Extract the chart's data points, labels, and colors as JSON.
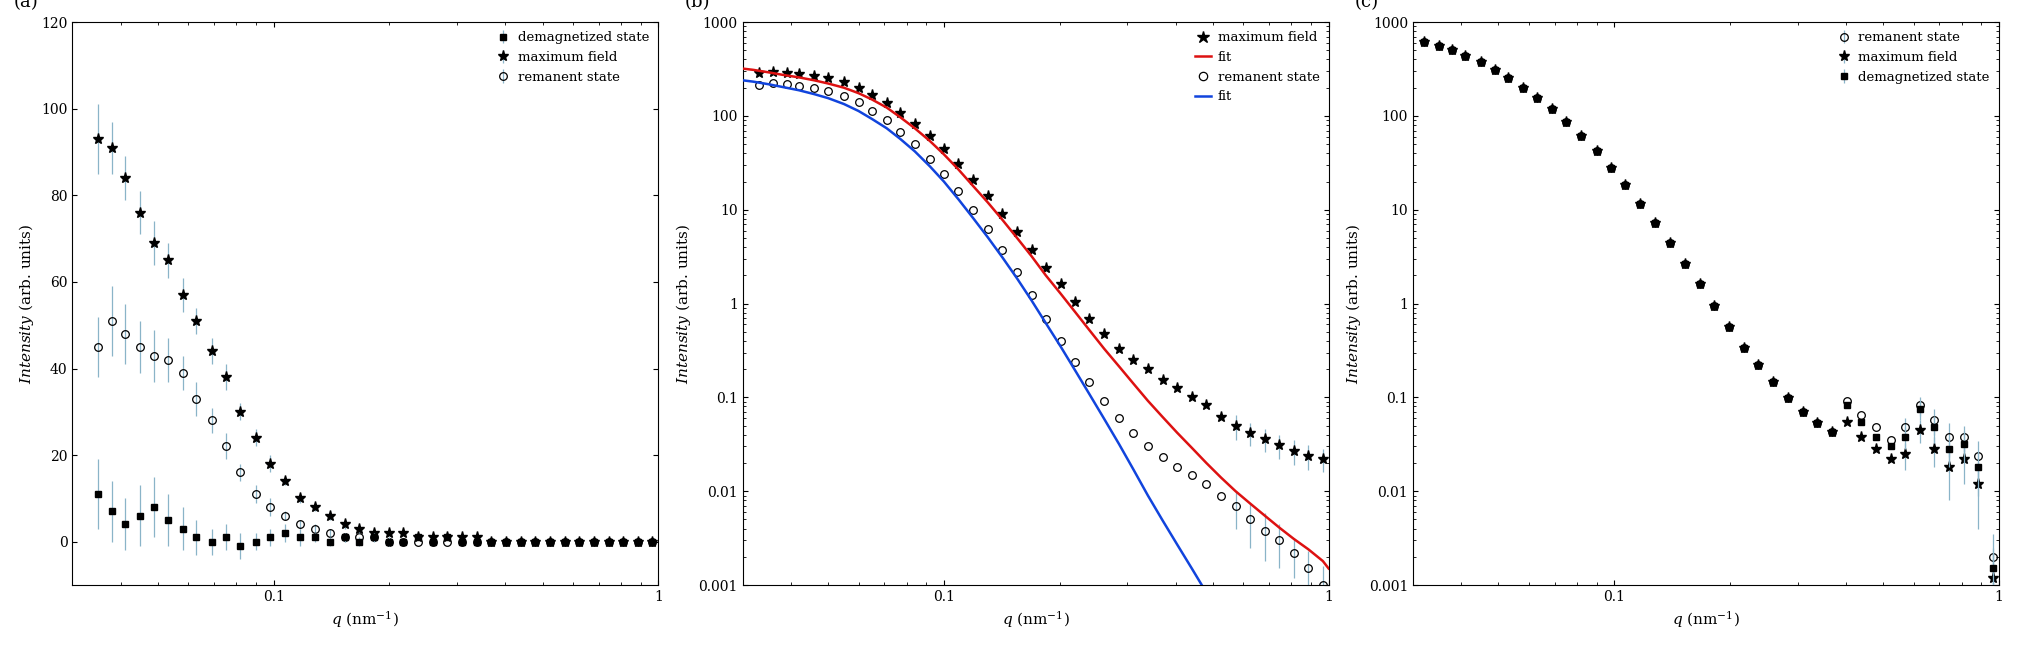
{
  "panel_a": {
    "xlim": [
      0.03,
      1.0
    ],
    "ylim": [
      -10,
      120
    ],
    "yticks": [
      0,
      20,
      40,
      60,
      80,
      100,
      120
    ],
    "demagnetized": {
      "q": [
        0.035,
        0.038,
        0.041,
        0.045,
        0.049,
        0.053,
        0.058,
        0.063,
        0.069,
        0.075,
        0.082,
        0.09,
        0.098,
        0.107,
        0.117,
        0.128,
        0.14,
        0.153,
        0.167,
        0.182,
        0.199,
        0.217,
        0.237,
        0.259,
        0.283,
        0.309,
        0.337,
        0.368,
        0.402,
        0.439,
        0.479,
        0.523,
        0.571,
        0.623,
        0.68,
        0.742,
        0.81,
        0.884,
        0.965
      ],
      "I": [
        11,
        7,
        4,
        6,
        8,
        5,
        3,
        1,
        0,
        1,
        -1,
        0,
        1,
        2,
        1,
        1,
        0,
        1,
        0,
        1,
        0,
        0,
        1,
        0,
        1,
        0,
        0,
        0,
        0,
        0,
        0,
        0,
        0,
        0,
        0,
        0,
        0,
        0,
        0
      ],
      "yerr": [
        8,
        7,
        6,
        7,
        7,
        6,
        5,
        4,
        3,
        3,
        3,
        2,
        2,
        2,
        2,
        1,
        1,
        1,
        1,
        1,
        1,
        0,
        0,
        0,
        0,
        0,
        0,
        0,
        0,
        0,
        0,
        0,
        0,
        0,
        0,
        0,
        0,
        0,
        0
      ]
    },
    "maximum_field": {
      "q": [
        0.035,
        0.038,
        0.041,
        0.045,
        0.049,
        0.053,
        0.058,
        0.063,
        0.069,
        0.075,
        0.082,
        0.09,
        0.098,
        0.107,
        0.117,
        0.128,
        0.14,
        0.153,
        0.167,
        0.182,
        0.199,
        0.217,
        0.237,
        0.259,
        0.283,
        0.309,
        0.337,
        0.368,
        0.402,
        0.439,
        0.479,
        0.523,
        0.571,
        0.623,
        0.68,
        0.742,
        0.81,
        0.884,
        0.965
      ],
      "I": [
        93,
        91,
        84,
        76,
        69,
        65,
        57,
        51,
        44,
        38,
        30,
        24,
        18,
        14,
        10,
        8,
        6,
        4,
        3,
        2,
        2,
        2,
        1,
        1,
        1,
        1,
        1,
        0,
        0,
        0,
        0,
        0,
        0,
        0,
        0,
        0,
        0,
        0,
        0
      ],
      "yerr": [
        8,
        6,
        5,
        5,
        5,
        4,
        4,
        3,
        3,
        3,
        2,
        2,
        2,
        1,
        1,
        1,
        1,
        1,
        1,
        0,
        0,
        0,
        0,
        0,
        0,
        0,
        0,
        0,
        0,
        0,
        0,
        0,
        0,
        0,
        0,
        0,
        0,
        0,
        0
      ]
    },
    "remanent": {
      "q": [
        0.035,
        0.038,
        0.041,
        0.045,
        0.049,
        0.053,
        0.058,
        0.063,
        0.069,
        0.075,
        0.082,
        0.09,
        0.098,
        0.107,
        0.117,
        0.128,
        0.14,
        0.153,
        0.167,
        0.182,
        0.199,
        0.217,
        0.237,
        0.259,
        0.283,
        0.309,
        0.337,
        0.368,
        0.402,
        0.439,
        0.479,
        0.523,
        0.571,
        0.623,
        0.68,
        0.742,
        0.81,
        0.884,
        0.965
      ],
      "I": [
        45,
        51,
        48,
        45,
        43,
        42,
        39,
        33,
        28,
        22,
        16,
        11,
        8,
        6,
        4,
        3,
        2,
        1,
        1,
        1,
        0,
        0,
        0,
        0,
        0,
        0,
        0,
        0,
        0,
        0,
        0,
        0,
        0,
        0,
        0,
        0,
        0,
        0,
        0
      ],
      "yerr": [
        7,
        8,
        7,
        6,
        6,
        5,
        4,
        4,
        3,
        3,
        2,
        2,
        2,
        1,
        1,
        1,
        1,
        1,
        0,
        0,
        0,
        0,
        0,
        0,
        0,
        0,
        0,
        0,
        0,
        0,
        0,
        0,
        0,
        0,
        0,
        0,
        0,
        0,
        0
      ]
    }
  },
  "panel_b": {
    "xlim": [
      0.03,
      1.0
    ],
    "ylim": [
      0.001,
      1000
    ],
    "maximum_field": {
      "q": [
        0.033,
        0.036,
        0.039,
        0.042,
        0.046,
        0.05,
        0.055,
        0.06,
        0.065,
        0.071,
        0.077,
        0.084,
        0.092,
        0.1,
        0.109,
        0.119,
        0.13,
        0.142,
        0.155,
        0.169,
        0.184,
        0.201,
        0.219,
        0.239,
        0.261,
        0.285,
        0.311,
        0.339,
        0.37,
        0.404,
        0.441,
        0.481,
        0.525,
        0.573,
        0.625,
        0.682,
        0.744,
        0.812,
        0.886,
        0.966
      ],
      "I": [
        290,
        295,
        288,
        280,
        268,
        252,
        228,
        198,
        168,
        138,
        108,
        82,
        61,
        44,
        31,
        21,
        14,
        9.0,
        5.8,
        3.7,
        2.4,
        1.6,
        1.05,
        0.68,
        0.47,
        0.33,
        0.25,
        0.2,
        0.155,
        0.125,
        0.102,
        0.082,
        0.062,
        0.05,
        0.042,
        0.036,
        0.031,
        0.027,
        0.024,
        0.022
      ],
      "yerr": [
        0,
        0,
        0,
        0,
        0,
        0,
        0,
        0,
        0,
        0,
        0,
        0,
        0,
        0,
        0,
        0,
        0,
        0,
        0,
        0,
        0,
        0,
        0,
        0,
        0,
        0,
        0,
        0,
        0,
        0,
        0,
        0,
        0,
        0.015,
        0.012,
        0.01,
        0.009,
        0.008,
        0.007,
        0.006
      ]
    },
    "remanent": {
      "q": [
        0.033,
        0.036,
        0.039,
        0.042,
        0.046,
        0.05,
        0.055,
        0.06,
        0.065,
        0.071,
        0.077,
        0.084,
        0.092,
        0.1,
        0.109,
        0.119,
        0.13,
        0.142,
        0.155,
        0.169,
        0.184,
        0.201,
        0.219,
        0.239,
        0.261,
        0.285,
        0.311,
        0.339,
        0.37,
        0.404,
        0.441,
        0.481,
        0.525,
        0.573,
        0.625,
        0.682,
        0.744,
        0.812,
        0.886,
        0.966
      ],
      "I": [
        215,
        222,
        218,
        208,
        198,
        185,
        165,
        140,
        114,
        90,
        68,
        50,
        35,
        24,
        16,
        10,
        6.2,
        3.7,
        2.15,
        1.22,
        0.68,
        0.4,
        0.24,
        0.145,
        0.092,
        0.06,
        0.042,
        0.03,
        0.023,
        0.018,
        0.015,
        0.012,
        0.009,
        0.007,
        0.005,
        0.0038,
        0.003,
        0.0022,
        0.0015,
        0.001
      ],
      "yerr": [
        0,
        0,
        0,
        0,
        0,
        0,
        0,
        0,
        0,
        0,
        0,
        0,
        0,
        0,
        0,
        0,
        0,
        0,
        0,
        0,
        0,
        0,
        0,
        0,
        0,
        0,
        0,
        0,
        0,
        0,
        0,
        0,
        0,
        0.003,
        0.0025,
        0.002,
        0.0015,
        0.001,
        0.0008,
        0.0006
      ]
    },
    "fit_max_q": [
      0.03,
      0.032,
      0.035,
      0.038,
      0.042,
      0.046,
      0.05,
      0.055,
      0.06,
      0.065,
      0.071,
      0.077,
      0.084,
      0.092,
      0.1,
      0.109,
      0.119,
      0.13,
      0.142,
      0.155,
      0.169,
      0.184,
      0.201,
      0.219,
      0.239,
      0.261,
      0.285,
      0.311,
      0.339,
      0.37,
      0.404,
      0.441,
      0.481,
      0.525,
      0.573,
      0.625,
      0.682,
      0.744,
      0.812,
      0.886,
      0.966,
      1.0
    ],
    "fit_max_I": [
      320,
      310,
      292,
      275,
      258,
      240,
      222,
      200,
      175,
      150,
      123,
      97,
      74,
      54,
      39,
      27,
      18,
      12,
      7.8,
      5.0,
      3.2,
      2.0,
      1.28,
      0.82,
      0.52,
      0.33,
      0.215,
      0.14,
      0.092,
      0.062,
      0.042,
      0.029,
      0.02,
      0.014,
      0.01,
      0.0074,
      0.0055,
      0.0041,
      0.0031,
      0.0024,
      0.0018,
      0.0015
    ],
    "fit_rem_q": [
      0.03,
      0.032,
      0.035,
      0.038,
      0.042,
      0.046,
      0.05,
      0.055,
      0.06,
      0.065,
      0.071,
      0.077,
      0.084,
      0.092,
      0.1,
      0.109,
      0.119,
      0.13,
      0.142,
      0.155,
      0.169,
      0.184,
      0.201,
      0.219,
      0.239,
      0.261,
      0.285,
      0.311,
      0.339,
      0.37,
      0.404,
      0.441,
      0.481,
      0.525,
      0.573,
      0.625,
      0.682,
      0.744,
      0.812,
      0.886,
      0.966,
      1.0
    ],
    "fit_rem_I": [
      240,
      232,
      218,
      204,
      188,
      171,
      155,
      134,
      113,
      93,
      74,
      57,
      42,
      29,
      20,
      13,
      8.2,
      5.1,
      3.1,
      1.85,
      1.08,
      0.62,
      0.35,
      0.196,
      0.108,
      0.059,
      0.032,
      0.017,
      0.009,
      0.0049,
      0.0027,
      0.0015,
      0.00083,
      0.00046,
      0.000255,
      0.000143,
      8e-05,
      4.5e-05,
      2.6e-05,
      1.5e-05,
      8.5e-06,
      6e-06
    ]
  },
  "panel_c": {
    "xlim": [
      0.03,
      1.0
    ],
    "ylim": [
      0.001,
      1000
    ],
    "demagnetized": {
      "q": [
        0.032,
        0.035,
        0.038,
        0.041,
        0.045,
        0.049,
        0.053,
        0.058,
        0.063,
        0.069,
        0.075,
        0.082,
        0.09,
        0.098,
        0.107,
        0.117,
        0.128,
        0.14,
        0.153,
        0.167,
        0.182,
        0.199,
        0.217,
        0.237,
        0.259,
        0.283,
        0.309,
        0.337,
        0.368,
        0.402,
        0.439,
        0.479,
        0.523,
        0.571,
        0.623,
        0.68,
        0.742,
        0.81,
        0.884,
        0.965
      ],
      "I": [
        620,
        560,
        500,
        440,
        375,
        312,
        255,
        200,
        156,
        118,
        86,
        61,
        42,
        28,
        18.5,
        11.5,
        7.2,
        4.4,
        2.65,
        1.6,
        0.95,
        0.56,
        0.34,
        0.22,
        0.145,
        0.098,
        0.07,
        0.053,
        0.043,
        0.082,
        0.055,
        0.038,
        0.03,
        0.038,
        0.075,
        0.048,
        0.028,
        0.032,
        0.018,
        0.0015
      ],
      "yerr": [
        0,
        0,
        0,
        0,
        0,
        0,
        0,
        0,
        0,
        0,
        0,
        0,
        0,
        0,
        0,
        0,
        0,
        0,
        0,
        0,
        0,
        0,
        0,
        0,
        0,
        0,
        0,
        0,
        0,
        0,
        0,
        0,
        0,
        0.01,
        0.018,
        0.015,
        0.01,
        0.012,
        0.009,
        0.001
      ]
    },
    "maximum_field": {
      "q": [
        0.032,
        0.035,
        0.038,
        0.041,
        0.045,
        0.049,
        0.053,
        0.058,
        0.063,
        0.069,
        0.075,
        0.082,
        0.09,
        0.098,
        0.107,
        0.117,
        0.128,
        0.14,
        0.153,
        0.167,
        0.182,
        0.199,
        0.217,
        0.237,
        0.259,
        0.283,
        0.309,
        0.337,
        0.368,
        0.402,
        0.439,
        0.479,
        0.523,
        0.571,
        0.623,
        0.68,
        0.742,
        0.81,
        0.884,
        0.965
      ],
      "I": [
        620,
        560,
        500,
        440,
        375,
        312,
        255,
        200,
        156,
        118,
        86,
        61,
        42,
        28,
        18.5,
        11.5,
        7.2,
        4.4,
        2.65,
        1.6,
        0.95,
        0.56,
        0.34,
        0.22,
        0.145,
        0.098,
        0.07,
        0.053,
        0.043,
        0.055,
        0.038,
        0.028,
        0.022,
        0.025,
        0.045,
        0.028,
        0.018,
        0.022,
        0.012,
        0.0012
      ],
      "yerr": [
        0,
        0,
        0,
        0,
        0,
        0,
        0,
        0,
        0,
        0,
        0,
        0,
        0,
        0,
        0,
        0,
        0,
        0,
        0,
        0,
        0,
        0,
        0,
        0,
        0,
        0,
        0,
        0,
        0,
        0,
        0,
        0,
        0,
        0.008,
        0.012,
        0.01,
        0.01,
        0.01,
        0.008,
        0.001
      ]
    },
    "remanent": {
      "q": [
        0.032,
        0.035,
        0.038,
        0.041,
        0.045,
        0.049,
        0.053,
        0.058,
        0.063,
        0.069,
        0.075,
        0.082,
        0.09,
        0.098,
        0.107,
        0.117,
        0.128,
        0.14,
        0.153,
        0.167,
        0.182,
        0.199,
        0.217,
        0.237,
        0.259,
        0.283,
        0.309,
        0.337,
        0.368,
        0.402,
        0.439,
        0.479,
        0.523,
        0.571,
        0.623,
        0.68,
        0.742,
        0.81,
        0.884,
        0.965
      ],
      "I": [
        620,
        560,
        500,
        440,
        375,
        312,
        255,
        200,
        156,
        118,
        86,
        61,
        42,
        28,
        18.5,
        11.5,
        7.2,
        4.4,
        2.65,
        1.6,
        0.95,
        0.56,
        0.34,
        0.22,
        0.145,
        0.098,
        0.07,
        0.053,
        0.043,
        0.092,
        0.065,
        0.048,
        0.035,
        0.048,
        0.082,
        0.058,
        0.038,
        0.038,
        0.024,
        0.002
      ],
      "yerr": [
        0,
        0,
        0,
        0,
        0,
        0,
        0,
        0,
        0,
        0,
        0,
        0,
        0,
        0,
        0,
        0,
        0,
        0,
        0,
        0,
        0,
        0,
        0,
        0,
        0,
        0,
        0,
        0,
        0,
        0,
        0,
        0,
        0,
        0.012,
        0.018,
        0.018,
        0.015,
        0.012,
        0.01,
        0.0015
      ]
    }
  },
  "errorbar_color": "#8ab4c8",
  "fit_red": "#dd1111",
  "fit_blue": "#1144dd"
}
